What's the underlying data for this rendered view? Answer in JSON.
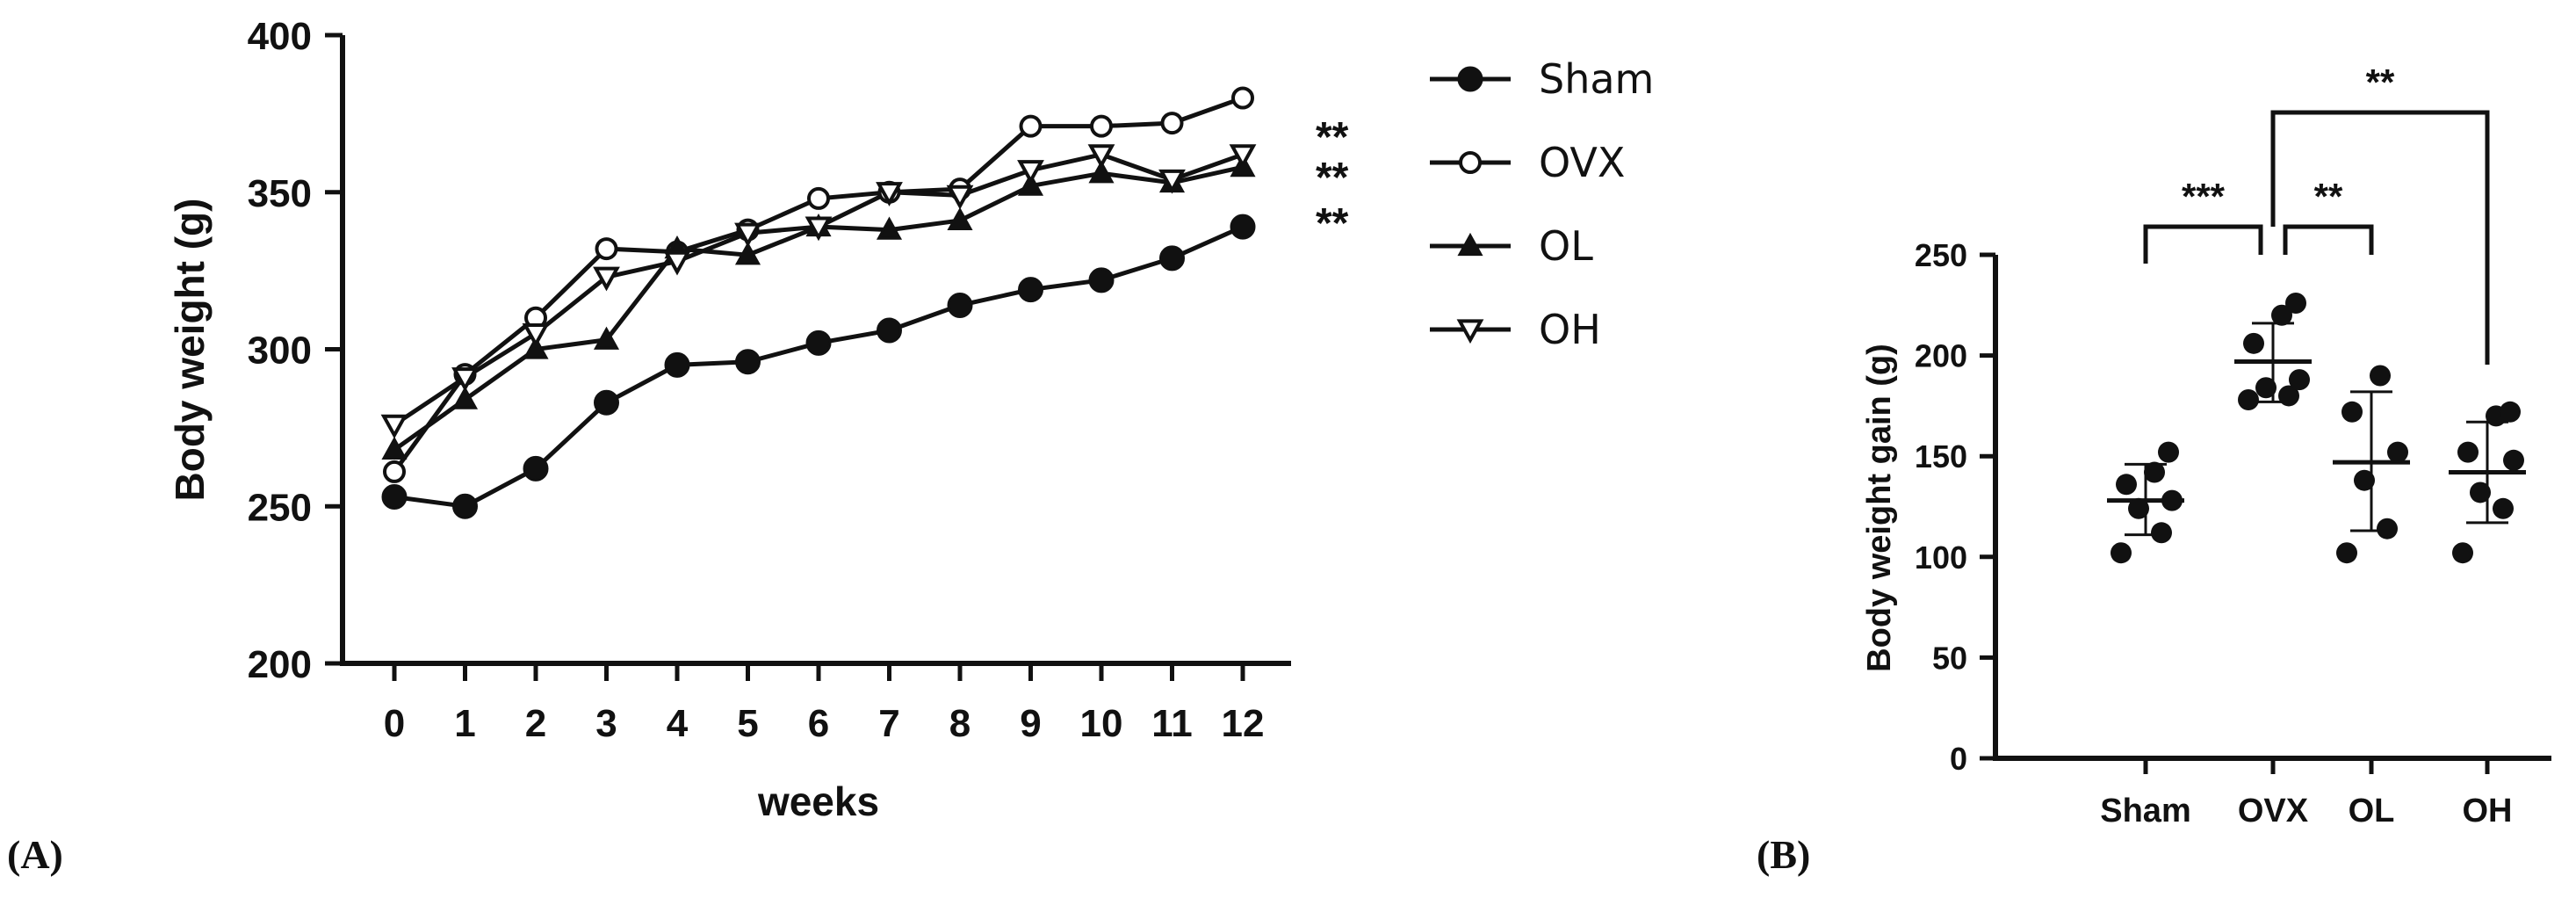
{
  "chart_data": [
    {
      "panel_label": "(A)",
      "type": "line",
      "title": "",
      "xlabel": "weeks",
      "ylabel": "Body weight (g)",
      "x": [
        0,
        1,
        2,
        3,
        4,
        5,
        6,
        7,
        8,
        9,
        10,
        11,
        12
      ],
      "xticks": [
        "0",
        "1",
        "2",
        "3",
        "4",
        "5",
        "6",
        "7",
        "8",
        "9",
        "10",
        "11",
        "12"
      ],
      "ylim": [
        200,
        400
      ],
      "yticks": [
        "200",
        "250",
        "300",
        "350",
        "400"
      ],
      "legend_position": "right",
      "series": [
        {
          "name": "Sham",
          "marker": "filled-circle",
          "values": [
            253,
            250,
            262,
            283,
            295,
            296,
            302,
            306,
            314,
            319,
            322,
            329,
            339
          ]
        },
        {
          "name": "OVX",
          "marker": "open-circle",
          "values": [
            261,
            292,
            310,
            332,
            331,
            338,
            348,
            350,
            351,
            371,
            371,
            372,
            380
          ]
        },
        {
          "name": "OL",
          "marker": "filled-triangle-up",
          "values": [
            268,
            284,
            300,
            303,
            332,
            330,
            339,
            338,
            341,
            352,
            356,
            353,
            358
          ]
        },
        {
          "name": "OH",
          "marker": "open-triangle-down",
          "values": [
            276,
            291,
            305,
            323,
            328,
            337,
            339,
            350,
            349,
            357,
            362,
            354,
            362
          ]
        }
      ],
      "annotations": [
        "**",
        "**",
        "**"
      ]
    },
    {
      "panel_label": "(B)",
      "type": "scatter",
      "title": "",
      "xlabel": "",
      "ylabel": "Body weight gain (g)",
      "categories": [
        "Sham",
        "OVX",
        "OL",
        "OH"
      ],
      "ylim": [
        0,
        250
      ],
      "yticks": [
        "0",
        "50",
        "100",
        "150",
        "200",
        "250"
      ],
      "groups": [
        {
          "name": "Sham",
          "points": [
            102,
            112,
            124,
            128,
            136,
            142,
            152
          ],
          "mean": 128,
          "sd_low": 111,
          "sd_high": 146
        },
        {
          "name": "OVX",
          "points": [
            178,
            180,
            184,
            188,
            206,
            220,
            226
          ],
          "mean": 197,
          "sd_low": 177,
          "sd_high": 216
        },
        {
          "name": "OL",
          "points": [
            102,
            114,
            138,
            152,
            172,
            190
          ],
          "mean": 147,
          "sd_low": 113,
          "sd_high": 182
        },
        {
          "name": "OH",
          "points": [
            102,
            124,
            132,
            148,
            152,
            170,
            172
          ],
          "mean": 142,
          "sd_low": 117,
          "sd_high": 167
        }
      ],
      "comparisons": [
        {
          "from": "Sham",
          "to": "OVX",
          "label": "***"
        },
        {
          "from": "OVX",
          "to": "OL",
          "label": "**"
        },
        {
          "from": "OVX",
          "to": "OH",
          "label": "**"
        }
      ]
    }
  ]
}
